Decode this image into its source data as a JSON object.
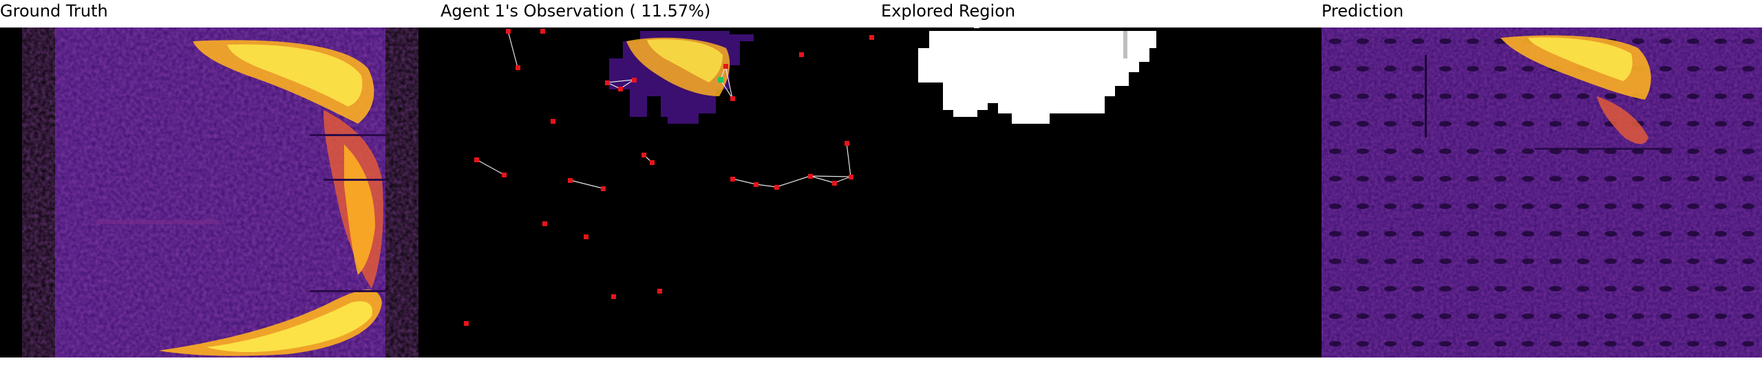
{
  "panels": {
    "ground_truth": {
      "title": "Ground Truth"
    },
    "observation": {
      "title": "Agent 1's Observation ( 11.57%)"
    },
    "explored": {
      "title": "Explored Region"
    },
    "prediction": {
      "title": "Prediction"
    }
  },
  "colors": {
    "background": "#000000",
    "heat_low": "#3b0f6f",
    "heat_mid": "#8c2981",
    "heat_high": "#fcae22",
    "heat_peak": "#fde94a",
    "agent_marker": "#e8141b",
    "self_agent_marker": "#22c55e",
    "explored_fill": "#ffffff"
  }
}
